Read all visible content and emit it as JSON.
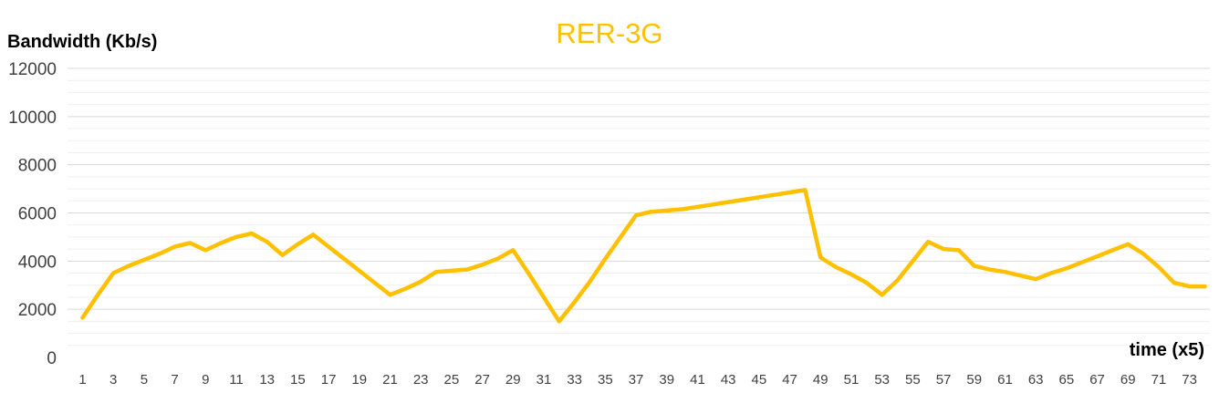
{
  "chart_data": {
    "type": "line",
    "title": "RER-3G",
    "ylabel": "Bandwidth (Kb/s)",
    "xlabel": "time (x5)",
    "ylim": [
      0,
      12000
    ],
    "yticks": [
      0,
      2000,
      4000,
      6000,
      8000,
      10000,
      12000
    ],
    "ytick_labels": [
      "0",
      "2000",
      "4000",
      "6000",
      "8000",
      "10000",
      "12000"
    ],
    "x": [
      1,
      2,
      3,
      4,
      5,
      6,
      7,
      8,
      9,
      10,
      11,
      12,
      13,
      14,
      15,
      16,
      17,
      18,
      19,
      20,
      21,
      22,
      23,
      24,
      25,
      26,
      27,
      28,
      29,
      30,
      31,
      32,
      33,
      34,
      35,
      36,
      37,
      38,
      39,
      40,
      41,
      42,
      43,
      44,
      45,
      46,
      47,
      48,
      49,
      50,
      51,
      52,
      53,
      54,
      55,
      56,
      57,
      58,
      59,
      60,
      61,
      62,
      63,
      64,
      65,
      66,
      67,
      68,
      69,
      70,
      71,
      72,
      73,
      74
    ],
    "xtick_labels": [
      "1",
      "3",
      "5",
      "7",
      "9",
      "11",
      "13",
      "15",
      "17",
      "19",
      "21",
      "23",
      "25",
      "27",
      "29",
      "31",
      "33",
      "35",
      "37",
      "39",
      "41",
      "43",
      "45",
      "47",
      "49",
      "51",
      "53",
      "55",
      "57",
      "59",
      "61",
      "63",
      "65",
      "67",
      "69",
      "71",
      "73"
    ],
    "grid": true,
    "legend": "none",
    "series": [
      {
        "color": "#FFC000",
        "values": [
          1650,
          2600,
          3500,
          3800,
          4050,
          4300,
          4600,
          4750,
          4450,
          4750,
          5000,
          5150,
          4800,
          4250,
          4700,
          5100,
          4600,
          4100,
          3600,
          3100,
          2600,
          2850,
          3150,
          3550,
          3600,
          3650,
          3850,
          4100,
          4450,
          3500,
          2500,
          1500,
          2300,
          3150,
          4100,
          5000,
          5900,
          6050,
          6100,
          6150,
          6250,
          6350,
          6450,
          6550,
          6650,
          6750,
          6850,
          6950,
          4150,
          3750,
          3450,
          3100,
          2600,
          3200,
          4000,
          4800,
          4500,
          4450,
          3800,
          3650,
          3550,
          3400,
          3250,
          3500,
          3700,
          3950,
          4200,
          4450,
          4700,
          4300,
          3750,
          3100,
          2950,
          2950
        ]
      }
    ]
  }
}
